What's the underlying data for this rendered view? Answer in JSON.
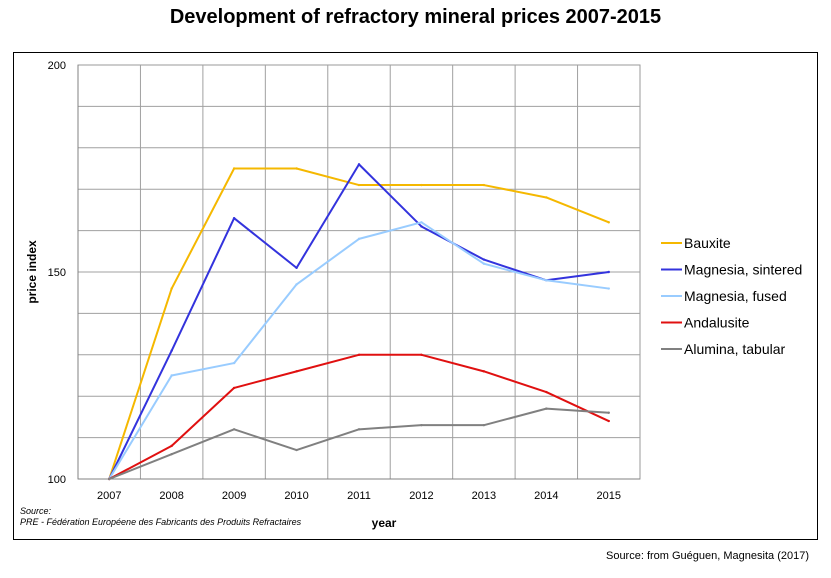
{
  "chart_data": {
    "type": "line",
    "title": "Development of refractory mineral prices 2007-2015",
    "xlabel": "year",
    "ylabel": "price index",
    "x": [
      "2007",
      "2008",
      "2009",
      "2010",
      "2011",
      "2012",
      "2013",
      "2014",
      "2015"
    ],
    "ylim": [
      100,
      200
    ],
    "yticks": [
      "100",
      "150",
      "200"
    ],
    "grid": true,
    "legend_position": "right",
    "series": [
      {
        "name": "Bauxite",
        "color": "#f5b800",
        "values": [
          100,
          146,
          175,
          175,
          171,
          171,
          171,
          168,
          162
        ]
      },
      {
        "name": "Magnesia, sintered",
        "color": "#3333dd",
        "values": [
          100,
          131,
          163,
          151,
          176,
          161,
          153,
          148,
          150
        ]
      },
      {
        "name": "Magnesia, fused",
        "color": "#99ccff",
        "values": [
          100,
          125,
          128,
          147,
          158,
          162,
          152,
          148,
          146
        ]
      },
      {
        "name": "Andalusite",
        "color": "#e01010",
        "values": [
          100,
          108,
          122,
          126,
          130,
          130,
          126,
          121,
          114
        ]
      },
      {
        "name": "Alumina, tabular",
        "color": "#808080",
        "values": [
          100,
          106,
          112,
          107,
          112,
          113,
          113,
          117,
          116
        ]
      }
    ]
  },
  "source_note": {
    "label": "Source:",
    "text": "PRE - Fédération Européene des Fabricants des Produits Refractaires"
  },
  "footer_source": "Source: from Guéguen, Magnesita (2017)"
}
